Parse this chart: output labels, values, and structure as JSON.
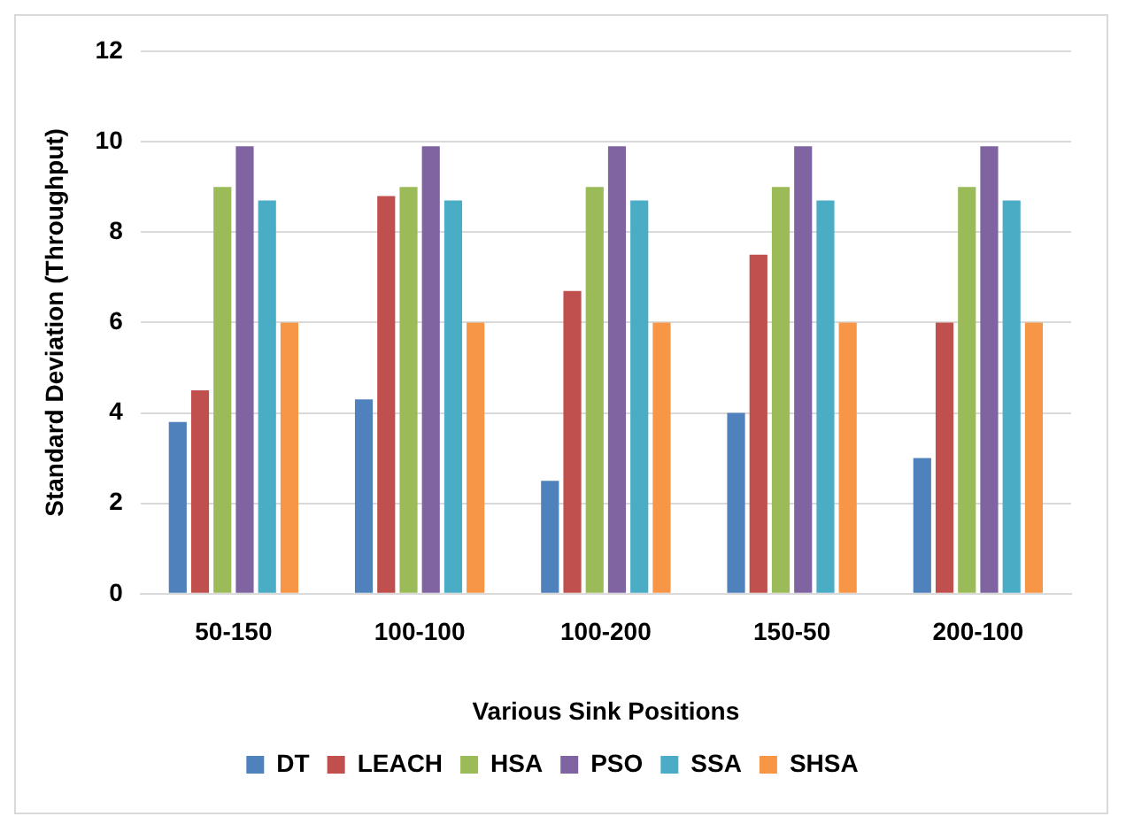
{
  "chart_data": {
    "type": "bar",
    "xlabel": "Various Sink Positions",
    "ylabel": "Standard Deviation (Throughput)",
    "categories": [
      "50-150",
      "100-100",
      "100-200",
      "150-50",
      "200-100"
    ],
    "series": [
      {
        "name": "DT",
        "color": "#4f81bd",
        "values": [
          3.8,
          4.3,
          2.5,
          4.0,
          3.0
        ]
      },
      {
        "name": "LEACH",
        "color": "#c0504d",
        "values": [
          4.5,
          8.8,
          6.7,
          7.5,
          6.0
        ]
      },
      {
        "name": "HSA",
        "color": "#9bbb59",
        "values": [
          9.0,
          9.0,
          9.0,
          9.0,
          9.0
        ]
      },
      {
        "name": "PSO",
        "color": "#8064a2",
        "values": [
          9.9,
          9.9,
          9.9,
          9.9,
          9.9
        ]
      },
      {
        "name": "SSA",
        "color": "#4bacc6",
        "values": [
          8.7,
          8.7,
          8.7,
          8.7,
          8.7
        ]
      },
      {
        "name": "SHSA",
        "color": "#f79646",
        "values": [
          6.0,
          6.0,
          6.0,
          6.0,
          6.0
        ]
      }
    ],
    "ylim": [
      0,
      12
    ],
    "yticks": [
      0,
      2,
      4,
      6,
      8,
      10,
      12
    ],
    "grid": "y",
    "legend": "bottom"
  }
}
